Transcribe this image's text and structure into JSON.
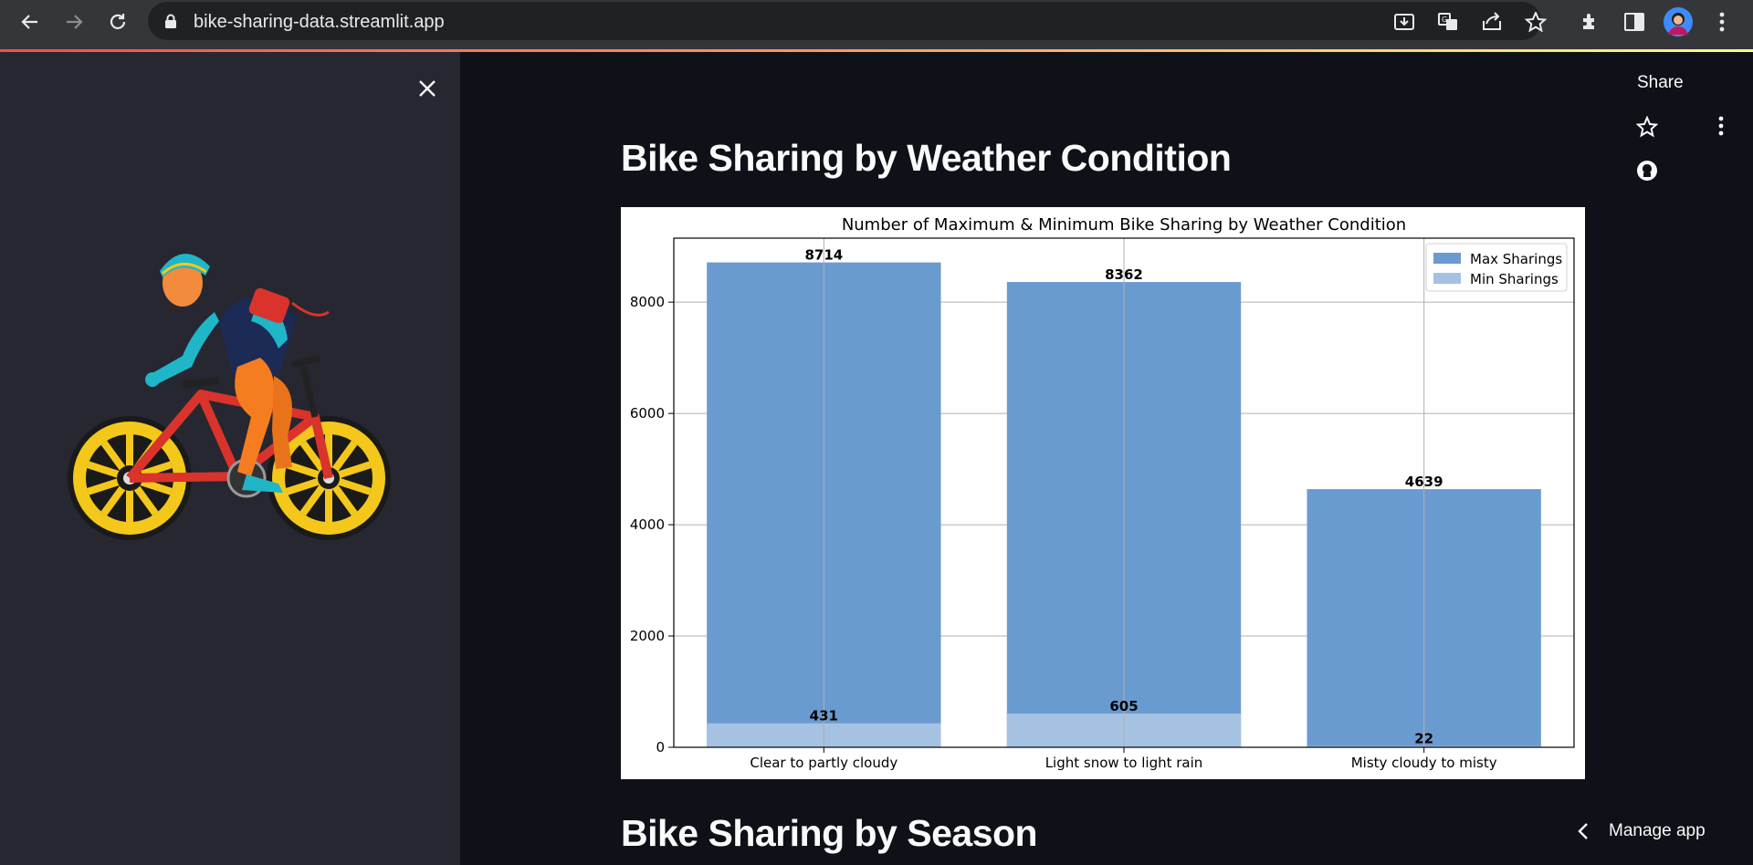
{
  "browser": {
    "url": "bike-sharing-data.streamlit.app",
    "icons": [
      "back-icon",
      "forward-icon",
      "reload-icon",
      "lock-icon",
      "install-icon",
      "translate-icon",
      "share-icon",
      "bookmark-star-icon",
      "extensions-icon",
      "side-panel-icon",
      "profile-avatar",
      "chrome-menu-icon"
    ]
  },
  "app": {
    "share_label": "Share",
    "manage_label": "Manage app",
    "section1_title": "Bike Sharing by Weather Condition",
    "section2_title": "Bike Sharing by Season"
  },
  "colors": {
    "accent_line_start": "#ff4b4b",
    "max_bar": "#6a9bd0",
    "min_bar": "#a6c2e2"
  },
  "chart_data": {
    "type": "bar",
    "title": "Number of Maximum & Minimum Bike Sharing by Weather Condition",
    "categories": [
      "Clear to partly cloudy",
      "Light snow to light rain",
      "Misty cloudy to misty"
    ],
    "series": [
      {
        "name": "Max Sharings",
        "values": [
          8714,
          8362,
          4639
        ]
      },
      {
        "name": "Min Sharings",
        "values": [
          431,
          605,
          22
        ]
      }
    ],
    "yticks": [
      "0",
      "2000",
      "4000",
      "6000",
      "8000"
    ],
    "ylim": [
      0,
      9150
    ],
    "grid": true,
    "legend": "top-right"
  }
}
